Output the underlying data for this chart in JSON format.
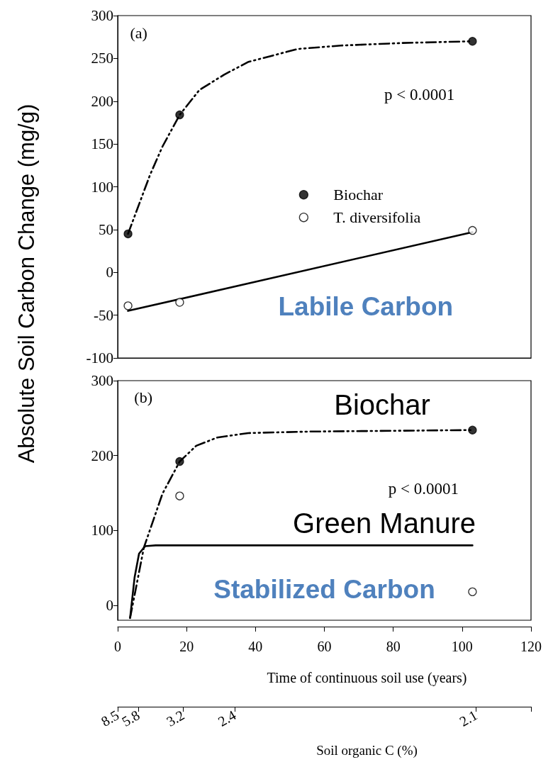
{
  "chart_data": [
    {
      "type": "scatter",
      "ylabel": "Absolute Soil Carbon Change (mg/g)",
      "xlim": [
        0,
        120
      ],
      "ylim": [
        -100,
        300
      ],
      "yticks": [
        -100,
        -50,
        0,
        50,
        100,
        150,
        200,
        250,
        300
      ],
      "tick_labels": "y",
      "legend": "right",
      "annotations": [
        "(a)",
        "p < 0.0001",
        "Labile Carbon"
      ],
      "series": [
        {
          "name": "Biochar",
          "type": "scatter",
          "marker": "circle",
          "color": "#000000",
          "x": [
            3,
            18,
            103
          ],
          "values": [
            45,
            184,
            270
          ]
        },
        {
          "name": "T. diversifolia",
          "type": "scatter",
          "marker": "circle",
          "color": "#ffffff",
          "x": [
            3,
            18,
            103
          ],
          "values": [
            -39,
            -35,
            49
          ]
        },
        {
          "type": "line",
          "marker": "none",
          "line_style": "dashed",
          "color": "#000000",
          "x": [
            3,
            9.4,
            13,
            18,
            23.7,
            30.9,
            38,
            52.3,
            64.8,
            82.7,
            103
          ],
          "values": [
            45,
            114,
            147,
            184,
            213,
            231,
            246,
            261,
            265,
            268,
            270
          ]
        },
        {
          "type": "line",
          "marker": "none",
          "line_style": "solid",
          "color": "#000000",
          "x": [
            3,
            103
          ],
          "values": [
            -45,
            47
          ]
        }
      ]
    },
    {
      "type": "scatter",
      "xlabel": "Time of continuous soil use (years)",
      "xlim": [
        0,
        120
      ],
      "xticks": [
        0,
        20,
        40,
        60,
        80,
        100,
        120
      ],
      "ylim": [
        -20,
        300
      ],
      "yticks": [
        0,
        100,
        200,
        300
      ],
      "x2label": "Soil organic C (%)",
      "annotations": [
        "(b)",
        "p < 0.0001",
        "Stabilized Carbon",
        "8.5",
        "5.8",
        "3.2",
        "2.4",
        "2.1"
      ],
      "series": [
        {
          "name": "Biochar",
          "type": "scatter",
          "marker": "circle",
          "color": "#000000",
          "x": [
            18,
            103
          ],
          "values": [
            192,
            234
          ]
        },
        {
          "name": "Green Manure",
          "type": "scatter",
          "marker": "circle",
          "color": "#ffffff",
          "x": [
            18,
            103
          ],
          "values": [
            146,
            18
          ]
        },
        {
          "type": "line",
          "marker": "none",
          "line_style": "dashed",
          "color": "#000000",
          "x": [
            3.6,
            7.6,
            13,
            18,
            22.8,
            28.9,
            37.9,
            55.8,
            103
          ],
          "values": [
            -17,
            77,
            149,
            192,
            213,
            224,
            230,
            232,
            234
          ]
        },
        {
          "type": "line",
          "marker": "none",
          "line_style": "solid",
          "color": "#000000",
          "x": [
            3.6,
            4.9,
            6.2,
            8,
            11,
            103
          ],
          "values": [
            -17,
            37,
            69,
            79,
            80,
            80
          ]
        }
      ]
    }
  ]
}
